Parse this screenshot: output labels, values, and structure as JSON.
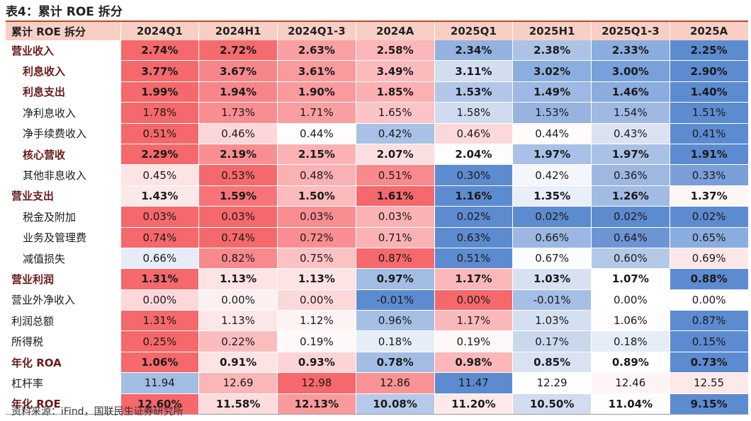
{
  "title": "表4：累计 ROE 拆分",
  "header": {
    "label": "累计 ROE 拆分",
    "columns": [
      "2024Q1",
      "2024H1",
      "2024Q1-3",
      "2024A",
      "2025Q1",
      "2025H1",
      "2025Q1-3",
      "2025A"
    ]
  },
  "rows": [
    {
      "label": "营业收入",
      "bold": true,
      "sub": false,
      "values": [
        "2.74%",
        "2.72%",
        "2.63%",
        "2.58%",
        "2.34%",
        "2.38%",
        "2.33%",
        "2.25%"
      ],
      "colors": [
        "#f5686b",
        "#f66b6e",
        "#f9a0a2",
        "#fbb7b9",
        "#93b2df",
        "#acc3e6",
        "#8badde",
        "#5d8bd0"
      ]
    },
    {
      "label": "利息收入",
      "bold": true,
      "sub": true,
      "values": [
        "3.77%",
        "3.67%",
        "3.61%",
        "3.49%",
        "3.11%",
        "3.02%",
        "3.00%",
        "2.90%"
      ],
      "colors": [
        "#f5686b",
        "#f7868a",
        "#f99a9d",
        "#fbbbbd",
        "#d3ddf0",
        "#8aaedf",
        "#78a0da",
        "#5d8bd0"
      ]
    },
    {
      "label": "利息支出",
      "bold": true,
      "sub": true,
      "values": [
        "1.99%",
        "1.94%",
        "1.90%",
        "1.85%",
        "1.53%",
        "1.49%",
        "1.46%",
        "1.40%"
      ],
      "colors": [
        "#f5686b",
        "#f7868a",
        "#f99a9d",
        "#fbb0b2",
        "#b2c7e8",
        "#9db8e2",
        "#8badde",
        "#5d8bd0"
      ]
    },
    {
      "label": "净利息收入",
      "bold": false,
      "sub": true,
      "values": [
        "1.78%",
        "1.73%",
        "1.71%",
        "1.65%",
        "1.58%",
        "1.53%",
        "1.54%",
        "1.51%"
      ],
      "colors": [
        "#f5686b",
        "#f88e91",
        "#f99fa1",
        "#fcc4c6",
        "#d0dbef",
        "#97b3e0",
        "#9fb9e3",
        "#5d8bd0"
      ]
    },
    {
      "label": "净手续费收入",
      "bold": false,
      "sub": true,
      "values": [
        "0.51%",
        "0.46%",
        "0.44%",
        "0.42%",
        "0.46%",
        "0.44%",
        "0.43%",
        "0.41%"
      ],
      "colors": [
        "#f5686b",
        "#fcd6d8",
        "#fefcfd",
        "#a9c1e6",
        "#fcd8da",
        "#fffbfb",
        "#dbe3f3",
        "#5d8bd0"
      ]
    },
    {
      "label": "核心营收",
      "bold": true,
      "sub": true,
      "values": [
        "2.29%",
        "2.19%",
        "2.15%",
        "2.07%",
        "2.04%",
        "1.97%",
        "1.97%",
        "1.91%"
      ],
      "colors": [
        "#f5686b",
        "#f88e91",
        "#fbb2b4",
        "#fcdfe1",
        "#fefdfd",
        "#a9c1e6",
        "#a9c1e6",
        "#5d8bd0"
      ]
    },
    {
      "label": "其他非息收入",
      "bold": false,
      "sub": true,
      "values": [
        "0.45%",
        "0.53%",
        "0.48%",
        "0.51%",
        "0.30%",
        "0.42%",
        "0.36%",
        "0.33%"
      ],
      "colors": [
        "#fde3e4",
        "#f5686b",
        "#fab1b3",
        "#f88a8d",
        "#5d8bd0",
        "#f3f6fb",
        "#9eb8e2",
        "#7a9fd8"
      ]
    },
    {
      "label": "营业支出",
      "bold": true,
      "sub": false,
      "values": [
        "1.43%",
        "1.59%",
        "1.50%",
        "1.61%",
        "1.16%",
        "1.35%",
        "1.26%",
        "1.37%"
      ],
      "colors": [
        "#fde8e9",
        "#f67478",
        "#fbbabc",
        "#f5686b",
        "#5d8bd0",
        "#e9eef8",
        "#a1bbe3",
        "#fef5f5"
      ]
    },
    {
      "label": "税金及附加",
      "bold": false,
      "sub": true,
      "values": [
        "0.03%",
        "0.03%",
        "0.03%",
        "0.03%",
        "0.02%",
        "0.02%",
        "0.02%",
        "0.02%"
      ],
      "colors": [
        "#f5686b",
        "#f5686b",
        "#f88e91",
        "#fbb2b4",
        "#5d8bd0",
        "#5d8bd0",
        "#5d8bd0",
        "#5d8bd0"
      ]
    },
    {
      "label": "业务及管理费",
      "bold": false,
      "sub": true,
      "values": [
        "0.74%",
        "0.74%",
        "0.72%",
        "0.71%",
        "0.63%",
        "0.66%",
        "0.64%",
        "0.65%"
      ],
      "colors": [
        "#f5686b",
        "#f5686b",
        "#f88e91",
        "#fbb2b4",
        "#5d8bd0",
        "#9cb7e2",
        "#6d95d4",
        "#8aaddf"
      ]
    },
    {
      "label": "减值损失",
      "bold": false,
      "sub": true,
      "values": [
        "0.66%",
        "0.82%",
        "0.75%",
        "0.87%",
        "0.51%",
        "0.67%",
        "0.60%",
        "0.69%"
      ],
      "colors": [
        "#e6edf7",
        "#f8898c",
        "#fcc1c3",
        "#f5686b",
        "#5d8bd0",
        "#fbfcfe",
        "#b4c8e8",
        "#fde7e8"
      ]
    },
    {
      "label": "营业利润",
      "bold": true,
      "sub": false,
      "values": [
        "1.31%",
        "1.13%",
        "1.13%",
        "0.97%",
        "1.17%",
        "1.03%",
        "1.07%",
        "0.88%"
      ],
      "colors": [
        "#f5686b",
        "#fde3e4",
        "#fde3e4",
        "#a2bce4",
        "#fbb7b9",
        "#d7e1f2",
        "#ffffff",
        "#5d8bd0"
      ]
    },
    {
      "label": "营业外净收入",
      "bold": false,
      "sub": false,
      "values": [
        "0.00%",
        "0.00%",
        "0.00%",
        "-0.01%",
        "0.00%",
        "-0.01%",
        "0.00%",
        "0.00%"
      ],
      "colors": [
        "#fdd8da",
        "#fdf0f1",
        "#fdd8da",
        "#5d8bd0",
        "#f5686b",
        "#a5bee5",
        "#ffffff",
        "#ffffff"
      ]
    },
    {
      "label": "利润总额",
      "bold": false,
      "sub": false,
      "values": [
        "1.31%",
        "1.13%",
        "1.12%",
        "0.96%",
        "1.17%",
        "1.03%",
        "1.06%",
        "0.87%"
      ],
      "colors": [
        "#f5686b",
        "#fde6e7",
        "#fef3f3",
        "#a6bfe5",
        "#fbb9bb",
        "#d4dff1",
        "#fefcfc",
        "#5d8bd0"
      ]
    },
    {
      "label": "所得税",
      "bold": false,
      "sub": false,
      "values": [
        "0.25%",
        "0.22%",
        "0.19%",
        "0.18%",
        "0.19%",
        "0.17%",
        "0.18%",
        "0.15%"
      ],
      "colors": [
        "#f5686b",
        "#fbbcbe",
        "#fef8f8",
        "#e6edf7",
        "#fef8f8",
        "#cad8ee",
        "#e6edf7",
        "#5d8bd0"
      ]
    },
    {
      "label": "年化 ROA",
      "bold": true,
      "sub": false,
      "values": [
        "1.06%",
        "0.91%",
        "0.93%",
        "0.78%",
        "0.98%",
        "0.85%",
        "0.89%",
        "0.73%"
      ],
      "colors": [
        "#f5686b",
        "#fde3e4",
        "#fcd4d6",
        "#a3bde4",
        "#fbb7b9",
        "#d9e2f2",
        "#ffffff",
        "#5d8bd0"
      ]
    },
    {
      "label": "杠杆率",
      "bold": false,
      "sub": false,
      "values": [
        "11.94",
        "12.69",
        "12.98",
        "12.86",
        "11.47",
        "12.29",
        "12.46",
        "12.55"
      ],
      "colors": [
        "#a3bde4",
        "#fbb6b8",
        "#f5686b",
        "#f99396",
        "#5d8bd0",
        "#fdfdfe",
        "#fef4f4",
        "#fde9ea"
      ]
    },
    {
      "label": "年化 ROE",
      "bold": true,
      "sub": false,
      "values": [
        "12.60%",
        "11.58%",
        "12.13%",
        "10.08%",
        "11.20%",
        "10.50%",
        "11.04%",
        "9.15%"
      ],
      "colors": [
        "#f5686b",
        "#fcdcdd",
        "#f99a9d",
        "#b5c9e8",
        "#fde9ea",
        "#d1dcf0",
        "#fdfdfe",
        "#5d8bd0"
      ]
    }
  ],
  "source": "资料来源：iFind，国联民生证券研究所"
}
